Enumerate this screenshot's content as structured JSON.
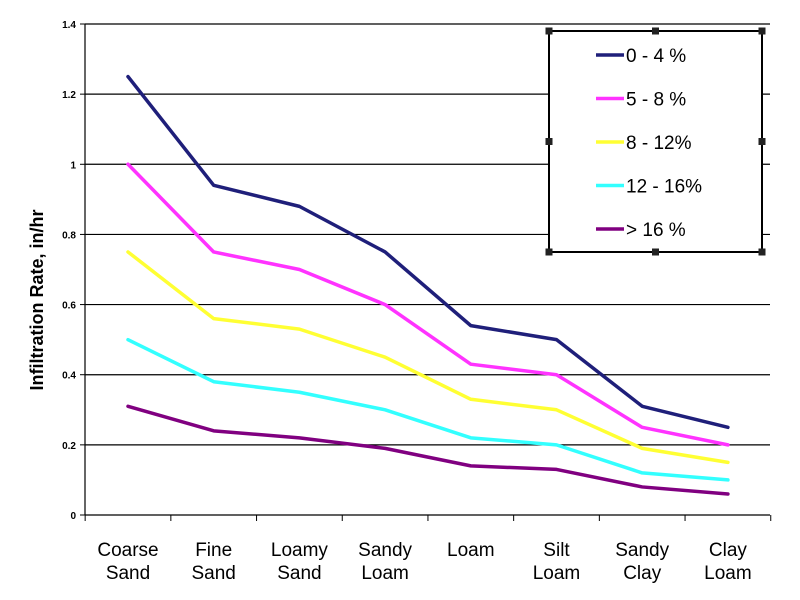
{
  "chart_data": {
    "type": "line",
    "title": "",
    "xlabel": "",
    "ylabel": "Infiltration Rate, in/hr",
    "ylim": [
      0,
      1.4
    ],
    "yticks": [
      "0",
      "0.2",
      "0.4",
      "0.6",
      "0.8",
      "1",
      "1.2",
      "1.4"
    ],
    "grid": true,
    "legend_position": "top-right",
    "categories": [
      [
        "Coarse",
        "Sand"
      ],
      [
        "Fine",
        "Sand"
      ],
      [
        "Loamy",
        "Sand"
      ],
      [
        "Sandy",
        "Loam"
      ],
      [
        "Loam"
      ],
      [
        "Silt",
        "Loam"
      ],
      [
        "Sandy",
        "Clay"
      ],
      [
        "Clay",
        "Loam"
      ]
    ],
    "series": [
      {
        "name": "0 - 4 %",
        "color": "#1f1f7a",
        "values": [
          1.25,
          0.94,
          0.88,
          0.75,
          0.54,
          0.5,
          0.31,
          0.25
        ]
      },
      {
        "name": "5 - 8 %",
        "color": "#ff33ff",
        "values": [
          1.0,
          0.75,
          0.7,
          0.6,
          0.43,
          0.4,
          0.25,
          0.2
        ]
      },
      {
        "name": "8 - 12%",
        "color": "#ffff33",
        "values": [
          0.75,
          0.56,
          0.53,
          0.45,
          0.33,
          0.3,
          0.19,
          0.15
        ]
      },
      {
        "name": "12 - 16%",
        "color": "#33ffff",
        "values": [
          0.5,
          0.38,
          0.35,
          0.3,
          0.22,
          0.2,
          0.12,
          0.1
        ]
      },
      {
        "name": "> 16 %",
        "color": "#800080",
        "values": [
          0.31,
          0.24,
          0.22,
          0.19,
          0.14,
          0.13,
          0.08,
          0.06
        ]
      }
    ]
  }
}
